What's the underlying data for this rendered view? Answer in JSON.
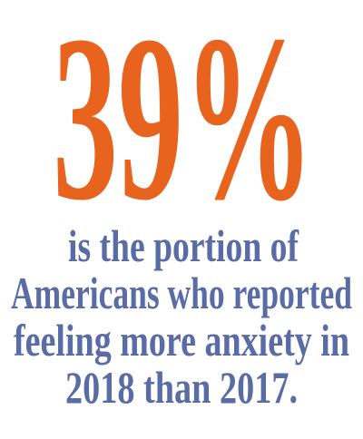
{
  "headline": "39%",
  "lines": [
    "is the portion of",
    "Americans who reported",
    "feeling more anxiety in",
    "2018 than 2017."
  ]
}
